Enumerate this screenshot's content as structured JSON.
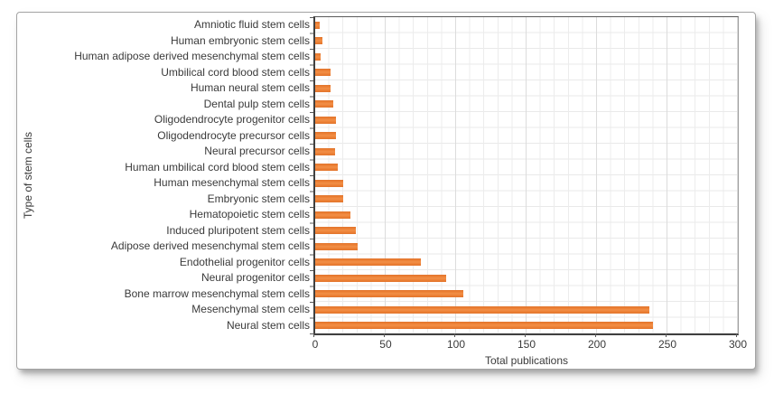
{
  "window": {
    "background": "#ffffff"
  },
  "colors": {
    "bar": "#ED7D31",
    "axis": "#404040",
    "grid_minor": "#ececec",
    "grid_major": "#dcdcdc",
    "text": "#3a3a3a",
    "card_border": "#a3a3a3",
    "card_background": "#ffffff"
  },
  "chart_data": {
    "type": "bar",
    "orientation": "horizontal",
    "title": "",
    "xlabel": "Total publications",
    "ylabel": "Type of stem cells",
    "xlim": [
      0,
      300
    ],
    "xticks": [
      "0",
      "50",
      "100",
      "150",
      "200",
      "250",
      "300"
    ],
    "xtick_values": [
      0,
      50,
      100,
      150,
      200,
      250,
      300
    ],
    "grid": "vertical minor every 10 units, vertical major every 50 units, horizontal line per category row",
    "legend": "none",
    "categories": [
      "Amniotic fluid stem cells",
      "Human embryonic stem cells",
      "Human adipose derived mesenchymal stem cells",
      "Umbilical cord blood stem cells",
      "Human neural stem cells",
      "Dental pulp stem cells",
      "Oligodendrocyte progenitor cells",
      "Oligodendrocyte precursor cells",
      "Neural precursor cells",
      "Human umbilical cord blood stem cells",
      "Human mesenchymal stem cells",
      "Embryonic stem cells",
      "Hematopoietic stem cells",
      "Induced pluripotent stem cells",
      "Adipose derived mesenchymal stem cells",
      "Endothelial progenitor cells",
      "Neural progenitor cells",
      "Bone marrow mesenchymal stem cells",
      "Mesenchymal stem cells",
      "Neural stem cells"
    ],
    "values": [
      3,
      5,
      4,
      11,
      11,
      13,
      15,
      15,
      14,
      16,
      20,
      20,
      25,
      29,
      30,
      75,
      93,
      105,
      237,
      240
    ]
  }
}
